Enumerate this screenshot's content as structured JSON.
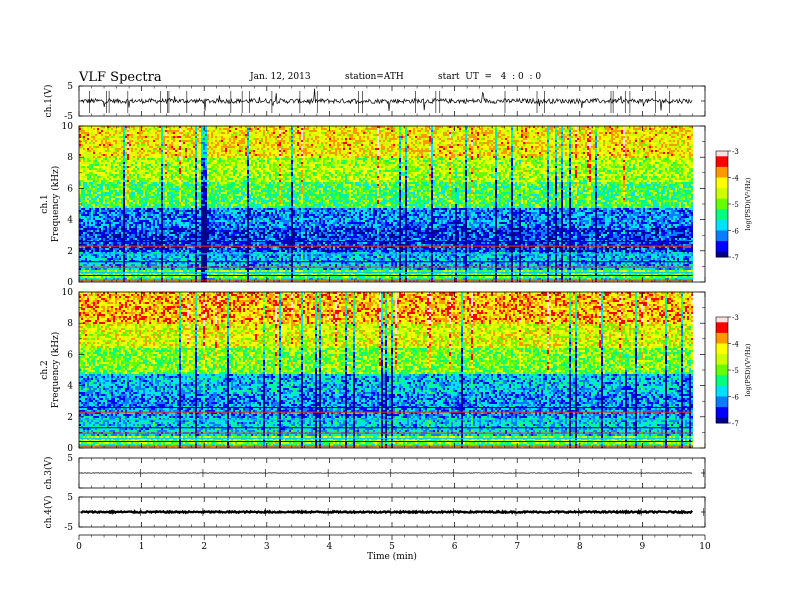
{
  "header": {
    "title": "VLF  Spectra",
    "date": "Jan. 12, 2013",
    "station": "station=ATH",
    "start": "start  UT  =   4  : 0  : 0"
  },
  "chart_data": [
    {
      "type": "line",
      "panel": "ch1-waveform",
      "ylabel": "ch.1(V)",
      "ylim": [
        -5,
        5
      ],
      "ytick_labels": [
        "5",
        "-5"
      ],
      "description_values": {
        "baseline": 0,
        "typical_spike": 2.5
      }
    },
    {
      "type": "heatmap",
      "panel": "ch1-spectrogram",
      "ylabel_line1": "ch.1",
      "ylabel_line2": "Frequency  (kHz)",
      "ylim": [
        0,
        10
      ],
      "yticks": [
        "0",
        "2",
        "4",
        "6",
        "8",
        "10"
      ],
      "xlim": [
        0,
        9.8
      ],
      "frequency_bands_logPSD": [
        {
          "f_lo": 0.0,
          "f_hi": 0.3,
          "level": -5.5
        },
        {
          "f_lo": 0.3,
          "f_hi": 0.8,
          "level": -5.0
        },
        {
          "f_lo": 0.8,
          "f_hi": 2.0,
          "level": -6.0
        },
        {
          "f_lo": 2.0,
          "f_hi": 3.5,
          "level": -6.5
        },
        {
          "f_lo": 3.5,
          "f_hi": 4.8,
          "level": -6.2
        },
        {
          "f_lo": 4.8,
          "f_hi": 6.5,
          "level": -5.2
        },
        {
          "f_lo": 6.5,
          "f_hi": 8.0,
          "level": -4.7
        },
        {
          "f_lo": 8.0,
          "f_hi": 10.0,
          "level": -4.2
        }
      ],
      "colorbar": {
        "label": "log(PSD)(V²/Hz)",
        "ticks": [
          "-3",
          "-4",
          "-5",
          "-6",
          "-7"
        ],
        "range": [
          -7,
          -3
        ]
      }
    },
    {
      "type": "heatmap",
      "panel": "ch2-spectrogram",
      "ylabel_line1": "ch.2",
      "ylabel_line2": "Frequency  (kHz)",
      "ylim": [
        0,
        10
      ],
      "yticks": [
        "0",
        "2",
        "4",
        "6",
        "8",
        "10"
      ],
      "xlim": [
        0,
        9.8
      ],
      "frequency_bands_logPSD": [
        {
          "f_lo": 0.0,
          "f_hi": 0.3,
          "level": -5.5
        },
        {
          "f_lo": 0.3,
          "f_hi": 0.8,
          "level": -5.0
        },
        {
          "f_lo": 0.8,
          "f_hi": 2.0,
          "level": -6.0
        },
        {
          "f_lo": 2.0,
          "f_hi": 3.5,
          "level": -6.3
        },
        {
          "f_lo": 3.5,
          "f_hi": 4.8,
          "level": -6.1
        },
        {
          "f_lo": 4.8,
          "f_hi": 6.5,
          "level": -5.1
        },
        {
          "f_lo": 6.5,
          "f_hi": 8.0,
          "level": -4.6
        },
        {
          "f_lo": 8.0,
          "f_hi": 10.0,
          "level": -4.1
        }
      ],
      "colorbar": {
        "label": "log(PSD)(V²/Hz)",
        "ticks": [
          "-3",
          "-4",
          "-5",
          "-6",
          "-7"
        ],
        "range": [
          -7,
          -3
        ]
      }
    },
    {
      "type": "line",
      "panel": "ch3-waveform",
      "ylabel": "ch.3(V)",
      "ylim": [
        -5,
        5
      ],
      "ytick_labels": [
        "5"
      ],
      "description_values": {
        "baseline": 0
      }
    },
    {
      "type": "line",
      "panel": "ch4-waveform",
      "ylabel": "ch.4(V)",
      "ylim": [
        -5,
        5
      ],
      "ytick_labels": [
        "5",
        "-5"
      ],
      "description_values": {
        "baseline": 0
      }
    }
  ],
  "xaxis": {
    "label": "Time  (min)",
    "ticks": [
      "0",
      "1",
      "2",
      "3",
      "4",
      "5",
      "6",
      "7",
      "8",
      "9",
      "10"
    ],
    "range": [
      0,
      10
    ],
    "data_end": 9.8
  },
  "colormap": [
    "#000080",
    "#0000ff",
    "#0080ff",
    "#00ffff",
    "#00ff80",
    "#80ff00",
    "#ffff00",
    "#ff8000",
    "#ff0000",
    "#ffffff"
  ]
}
